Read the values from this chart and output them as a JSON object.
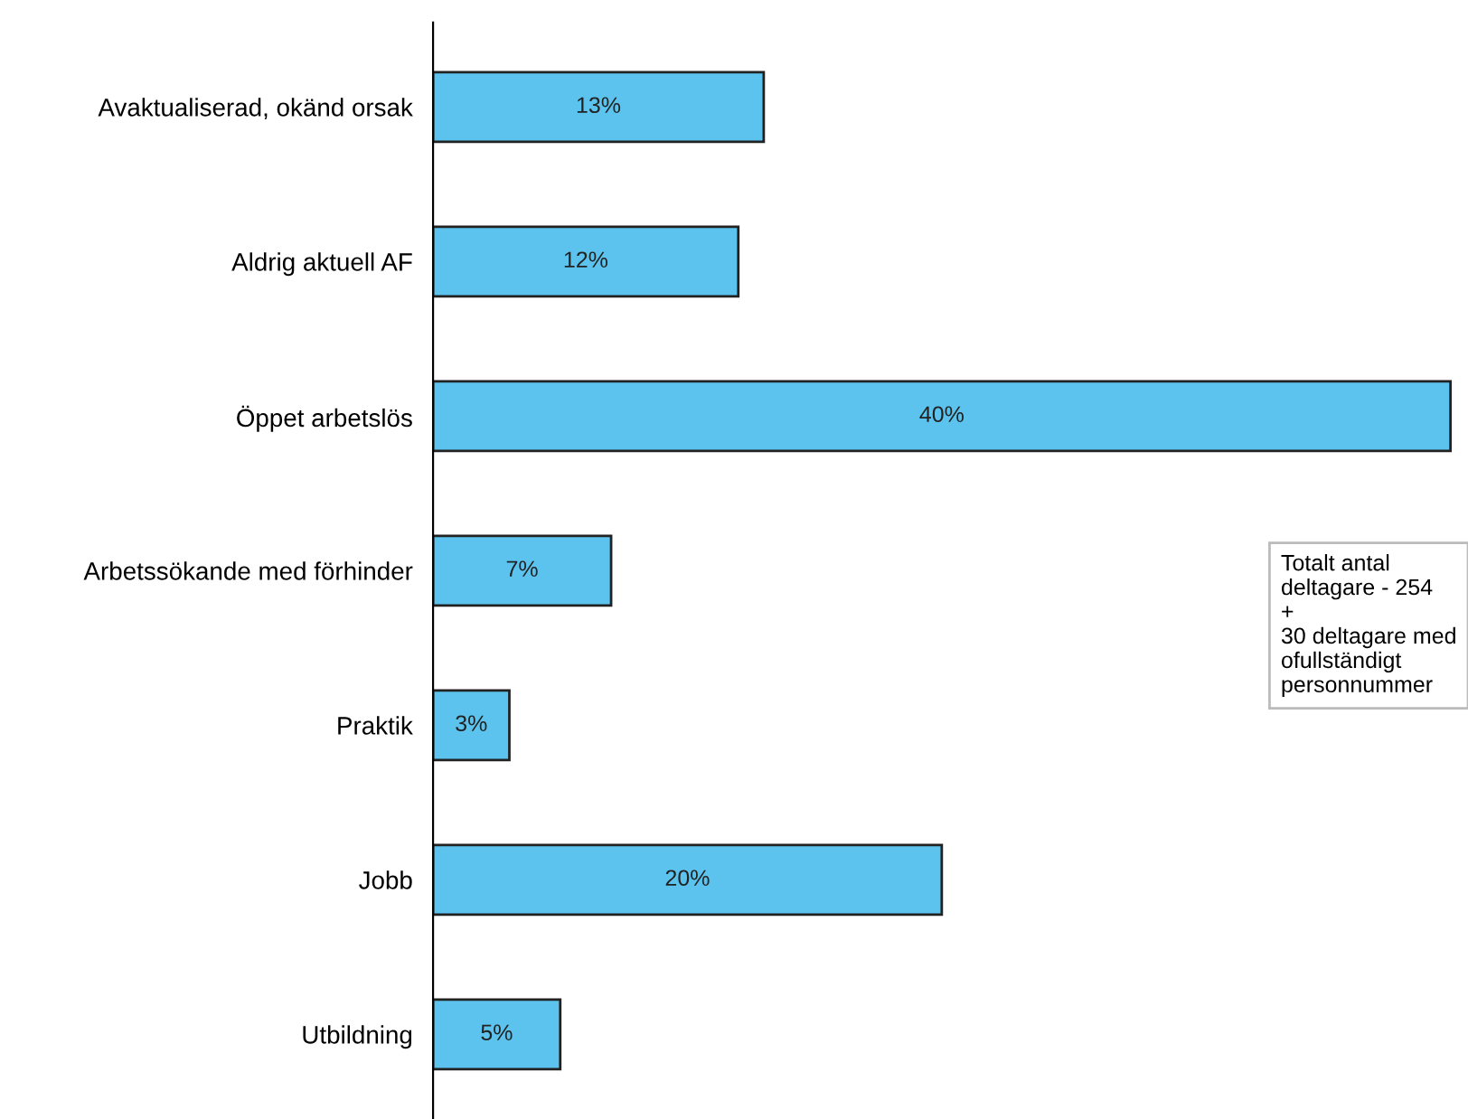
{
  "chart_data": {
    "type": "bar",
    "orientation": "horizontal",
    "categories": [
      "Avaktualiserad, okänd orsak",
      "Aldrig aktuell AF",
      "Öppet arbetslös",
      "Arbetssökande med förhinder",
      "Praktik",
      "Jobb",
      "Utbildning"
    ],
    "values": [
      13,
      12,
      40,
      7,
      3,
      20,
      5
    ],
    "value_labels": [
      "13%",
      "12%",
      "40%",
      "7%",
      "3%",
      "20%",
      "5%"
    ],
    "color": "#5bc3ee",
    "annotations": [
      "Totalt antal\ndeltagare - 254\n+\n30 deltagare med\nofullständigt\npersonnummer"
    ]
  }
}
